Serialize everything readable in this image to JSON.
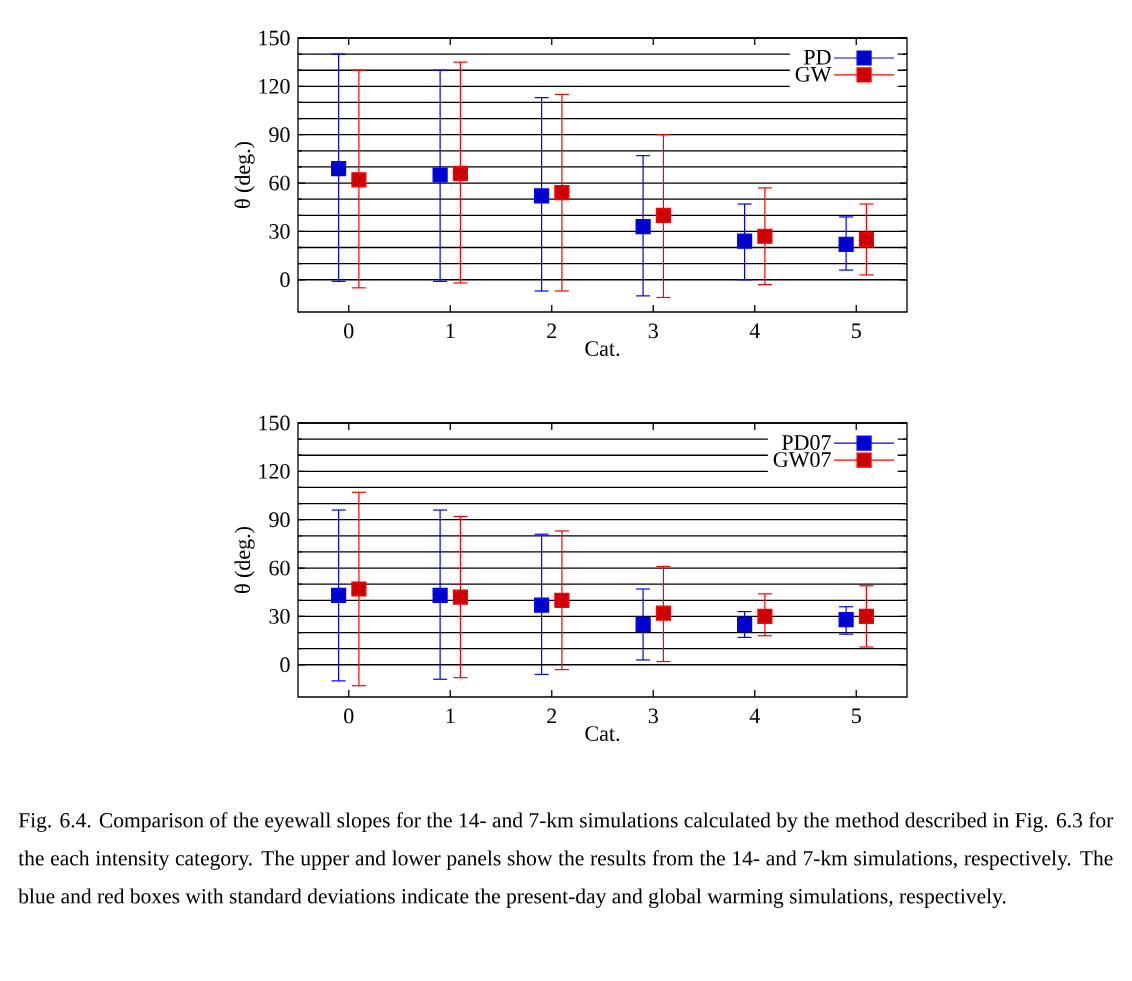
{
  "chart_data": [
    {
      "type": "scatter",
      "xlabel": "Cat.",
      "ylabel": "θ (deg.)",
      "xlim": [
        -0.5,
        5.5
      ],
      "xticks": [
        0,
        1,
        2,
        3,
        4,
        5
      ],
      "ylim": [
        -20,
        150
      ],
      "yticks": [
        0,
        30,
        60,
        90,
        120,
        150
      ],
      "grid": "y",
      "legend": "top right",
      "marker": "square",
      "series": [
        {
          "name": "PD",
          "color": "#0000ff",
          "x": [
            -0.1,
            0.9,
            1.9,
            2.9,
            3.9,
            4.9
          ],
          "values": [
            69,
            65,
            52,
            33,
            24,
            22
          ],
          "errors": [
            [
              -1,
              140
            ],
            [
              -1,
              130
            ],
            [
              -7,
              113
            ],
            [
              -10,
              77
            ],
            [
              0,
              47
            ],
            [
              6,
              39
            ]
          ]
        },
        {
          "name": "GW",
          "color": "#ff0000",
          "x": [
            0.1,
            1.1,
            2.1,
            3.1,
            4.1,
            5.1
          ],
          "values": [
            62,
            66,
            54,
            40,
            27,
            25
          ],
          "errors": [
            [
              -5,
              130
            ],
            [
              -2,
              135
            ],
            [
              -7,
              115
            ],
            [
              -11,
              90
            ],
            [
              -3,
              57
            ],
            [
              3,
              47
            ]
          ]
        }
      ]
    },
    {
      "type": "scatter",
      "xlabel": "Cat.",
      "ylabel": "θ (deg.)",
      "xlim": [
        -0.5,
        5.5
      ],
      "xticks": [
        0,
        1,
        2,
        3,
        4,
        5
      ],
      "ylim": [
        -20,
        150
      ],
      "yticks": [
        0,
        30,
        60,
        90,
        120,
        150
      ],
      "grid": "y",
      "legend": "top right",
      "marker": "square",
      "series": [
        {
          "name": "PD07",
          "color": "#0000ff",
          "x": [
            -0.1,
            0.9,
            1.9,
            2.9,
            3.9,
            4.9
          ],
          "values": [
            43,
            43,
            37,
            25,
            25,
            28
          ],
          "errors": [
            [
              -10,
              96
            ],
            [
              -9,
              96
            ],
            [
              -6,
              81
            ],
            [
              3,
              47
            ],
            [
              17,
              33
            ],
            [
              19,
              36
            ]
          ]
        },
        {
          "name": "GW07",
          "color": "#ff0000",
          "x": [
            0.1,
            1.1,
            2.1,
            3.1,
            4.1,
            5.1
          ],
          "values": [
            47,
            42,
            40,
            32,
            30,
            30
          ],
          "errors": [
            [
              -13,
              107
            ],
            [
              -8,
              92
            ],
            [
              -3,
              83
            ],
            [
              2,
              61
            ],
            [
              18,
              44
            ],
            [
              11,
              49
            ]
          ]
        }
      ],
      "annotations": [
        "Fig. 6.4. Comparison of the eyewall slopes for the 14- and 7-km simulations calculated by the method described in Fig. 6.3 for the each intensity category. The upper and lower panels show the results from the 14- and 7-km simulations, respectively. The blue and red boxes with standard deviations indicate the present-day and global warming simulations, respectively."
      ]
    }
  ]
}
